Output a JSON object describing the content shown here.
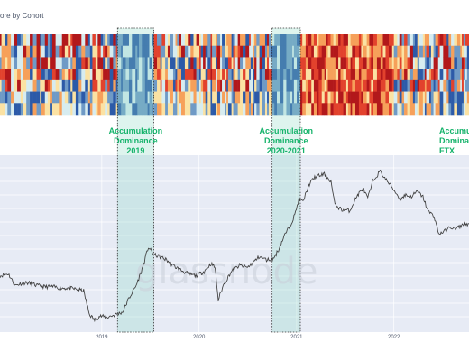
{
  "page": {
    "title": "ore by Cohort",
    "watermark": "glassnode"
  },
  "chart_data": {
    "type": "heatmap",
    "title": "ore by Cohort",
    "heatmap": {
      "rows": 7,
      "colorscale": [
        "#2c5aa8",
        "#6f9ac6",
        "#d7ecf0",
        "#fbe2a3",
        "#f6a05a",
        "#e2422d",
        "#b2181b"
      ],
      "segments": [
        {
          "x_start": "2017-12-15",
          "x_end": "2019-03-01",
          "regime": "mixed"
        },
        {
          "x_start": "2019-03-01",
          "x_end": "2019-07-15",
          "regime": "accumulation"
        },
        {
          "x_start": "2019-07-15",
          "x_end": "2020-10-01",
          "regime": "mixed"
        },
        {
          "x_start": "2020-10-01",
          "x_end": "2021-01-15",
          "regime": "accumulation"
        },
        {
          "x_start": "2021-01-15",
          "x_end": "2022-01-01",
          "regime": "distribution"
        },
        {
          "x_start": "2022-01-01",
          "x_end": "2022-12-31",
          "regime": "mixed"
        }
      ]
    },
    "price_series": {
      "scale": "log",
      "points": [
        {
          "x": "2017-12-15",
          "y": 3000
        },
        {
          "x": "2018-01-15",
          "y": 3100
        },
        {
          "x": "2018-02-10",
          "y": 2600
        },
        {
          "x": "2018-03-10",
          "y": 2700
        },
        {
          "x": "2018-04-01",
          "y": 2700
        },
        {
          "x": "2018-05-01",
          "y": 2600
        },
        {
          "x": "2018-06-01",
          "y": 2550
        },
        {
          "x": "2018-07-01",
          "y": 2550
        },
        {
          "x": "2018-08-01",
          "y": 2500
        },
        {
          "x": "2018-09-01",
          "y": 2500
        },
        {
          "x": "2018-10-01",
          "y": 2450
        },
        {
          "x": "2018-10-25",
          "y": 2400
        },
        {
          "x": "2018-11-15",
          "y": 1700
        },
        {
          "x": "2018-12-05",
          "y": 1550
        },
        {
          "x": "2018-12-25",
          "y": 1650
        },
        {
          "x": "2019-01-20",
          "y": 1620
        },
        {
          "x": "2019-02-20",
          "y": 1680
        },
        {
          "x": "2019-03-20",
          "y": 1750
        },
        {
          "x": "2019-04-10",
          "y": 2100
        },
        {
          "x": "2019-05-10",
          "y": 2600
        },
        {
          "x": "2019-06-01",
          "y": 3300
        },
        {
          "x": "2019-06-25",
          "y": 4600
        },
        {
          "x": "2019-07-15",
          "y": 4100
        },
        {
          "x": "2019-08-05",
          "y": 4000
        },
        {
          "x": "2019-09-01",
          "y": 3800
        },
        {
          "x": "2019-09-25",
          "y": 3500
        },
        {
          "x": "2019-10-20",
          "y": 3300
        },
        {
          "x": "2019-11-20",
          "y": 3100
        },
        {
          "x": "2019-12-20",
          "y": 3000
        },
        {
          "x": "2020-01-20",
          "y": 3200
        },
        {
          "x": "2020-02-15",
          "y": 3600
        },
        {
          "x": "2020-03-01",
          "y": 3400
        },
        {
          "x": "2020-03-13",
          "y": 2100
        },
        {
          "x": "2020-04-01",
          "y": 2600
        },
        {
          "x": "2020-05-01",
          "y": 3200
        },
        {
          "x": "2020-06-01",
          "y": 3500
        },
        {
          "x": "2020-07-01",
          "y": 3400
        },
        {
          "x": "2020-07-25",
          "y": 3700
        },
        {
          "x": "2020-08-15",
          "y": 4000
        },
        {
          "x": "2020-09-10",
          "y": 3800
        },
        {
          "x": "2020-10-05",
          "y": 3850
        },
        {
          "x": "2020-10-25",
          "y": 4400
        },
        {
          "x": "2020-11-15",
          "y": 5400
        },
        {
          "x": "2020-12-05",
          "y": 6200
        },
        {
          "x": "2020-12-25",
          "y": 7400
        },
        {
          "x": "2021-01-10",
          "y": 9400
        },
        {
          "x": "2021-01-25",
          "y": 9000
        },
        {
          "x": "2021-02-15",
          "y": 11500
        },
        {
          "x": "2021-03-10",
          "y": 13000
        },
        {
          "x": "2021-04-15",
          "y": 13600
        },
        {
          "x": "2021-05-10",
          "y": 12200
        },
        {
          "x": "2021-05-25",
          "y": 8600
        },
        {
          "x": "2021-06-20",
          "y": 8000
        },
        {
          "x": "2021-07-20",
          "y": 7900
        },
        {
          "x": "2021-08-15",
          "y": 9800
        },
        {
          "x": "2021-09-07",
          "y": 11000
        },
        {
          "x": "2021-09-25",
          "y": 9500
        },
        {
          "x": "2021-10-15",
          "y": 12300
        },
        {
          "x": "2021-11-10",
          "y": 14200
        },
        {
          "x": "2021-12-01",
          "y": 12600
        },
        {
          "x": "2021-12-20",
          "y": 11500
        },
        {
          "x": "2022-01-10",
          "y": 10200
        },
        {
          "x": "2022-01-25",
          "y": 9400
        },
        {
          "x": "2022-02-15",
          "y": 10000
        },
        {
          "x": "2022-03-05",
          "y": 9700
        },
        {
          "x": "2022-03-30",
          "y": 10500
        },
        {
          "x": "2022-04-20",
          "y": 9700
        },
        {
          "x": "2022-05-10",
          "y": 7800
        },
        {
          "x": "2022-06-01",
          "y": 7300
        },
        {
          "x": "2022-06-18",
          "y": 5600
        },
        {
          "x": "2022-07-10",
          "y": 5800
        },
        {
          "x": "2022-08-01",
          "y": 6200
        },
        {
          "x": "2022-08-20",
          "y": 6000
        },
        {
          "x": "2022-09-15",
          "y": 6400
        },
        {
          "x": "2022-10-10",
          "y": 6500
        }
      ]
    },
    "x_axis": {
      "domain": [
        "2017-12-15",
        "2022-10-10"
      ],
      "tick_labels": [
        {
          "x": "2019-01-01",
          "label": "2019"
        },
        {
          "x": "2020-01-01",
          "label": "2020"
        },
        {
          "x": "2021-01-01",
          "label": "2021"
        },
        {
          "x": "2022-01-01",
          "label": "2022"
        }
      ]
    },
    "y_axis": {
      "scale": "log",
      "range": [
        1300,
        18000
      ],
      "tick_labels": []
    },
    "grid": true,
    "annotations": [
      {
        "lines": [
          "Accumulation",
          "Dominance",
          "2019"
        ],
        "x_start": "2019-03-01",
        "x_end": "2019-07-15"
      },
      {
        "lines": [
          "Accumulation",
          "Dominance",
          "2020-2021"
        ],
        "x_start": "2020-10-01",
        "x_end": "2021-01-15"
      },
      {
        "lines": [
          "Accumulation",
          "Dominance",
          "FTX"
        ],
        "x_start": "2022-10-20",
        "x_end": "2022-12-31"
      }
    ],
    "colors": {
      "price_line": "#3d3d3d",
      "plot_bg": "#e7ebf5",
      "highlight_fill": "#8ad9c3",
      "highlight_border": "#333333",
      "annotation_text": "#16b36b"
    }
  }
}
